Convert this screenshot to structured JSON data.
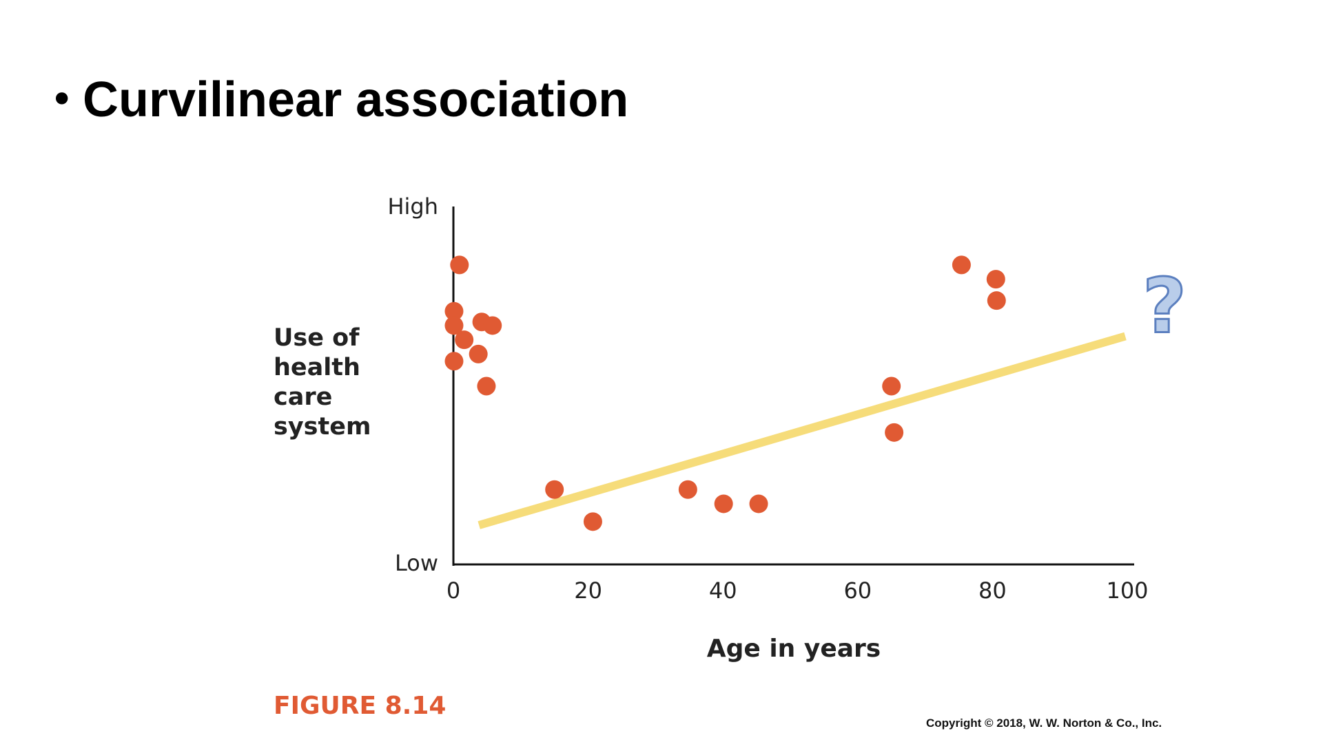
{
  "slide_title": "Curvilinear association",
  "chart_data": {
    "type": "scatter",
    "x_label": "Age in years",
    "y_label": "Use of health care system",
    "xlim": [
      0,
      100
    ],
    "xticks": [
      0,
      20,
      40,
      60,
      80,
      100
    ],
    "ylim": [
      0,
      10
    ],
    "yticks": [
      {
        "value": 0,
        "label": "Low"
      },
      {
        "value": 10,
        "label": "High"
      }
    ],
    "series": [
      {
        "color": "#e05a33",
        "x": [
          0.9,
          0.1,
          0.1,
          1.6,
          0.1,
          3.7,
          4.2,
          5.8,
          4.9,
          15.0,
          20.7,
          34.8,
          40.1,
          45.3,
          65.0,
          65.4,
          75.4,
          80.5,
          80.6
        ],
        "values": [
          8.4,
          7.1,
          6.7,
          6.3,
          5.7,
          5.9,
          6.8,
          6.7,
          5.0,
          2.1,
          1.2,
          2.1,
          1.7,
          1.7,
          5.0,
          3.7,
          8.4,
          8.0,
          7.4
        ]
      }
    ],
    "trend_line": {
      "color": "#f6dc7a",
      "x": [
        3.8,
        99.7
      ],
      "values": [
        1.1,
        6.4
      ]
    },
    "annotation": "?"
  },
  "figure_label": "FIGURE 8.14",
  "copyright": "Copyright © 2018, W. W. Norton & Co., Inc."
}
